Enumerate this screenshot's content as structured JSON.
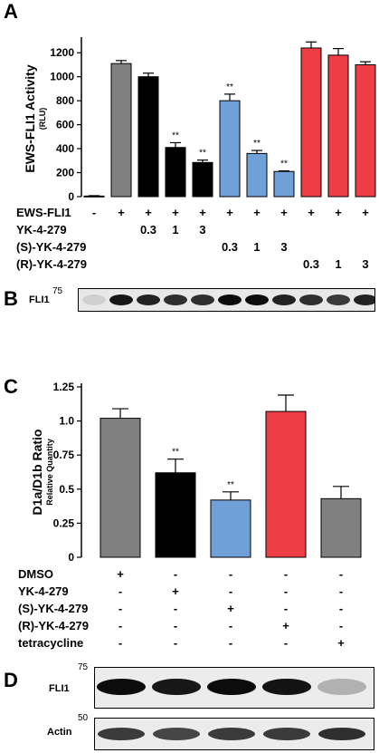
{
  "panels": {
    "a": {
      "letter": "A"
    },
    "b": {
      "letter": "B",
      "label": "FLI1",
      "mw": "75"
    },
    "c": {
      "letter": "C"
    },
    "d": {
      "letter": "D",
      "label_top": "FLI1",
      "mw_top": "75",
      "label_bottom": "Actin",
      "mw_bottom": "50"
    }
  },
  "colors": {
    "grey": "#808080",
    "black": "#000000",
    "blue": "#6fa0d8",
    "red": "#ee3d45"
  },
  "chart_data": [
    {
      "type": "bar",
      "panel": "A",
      "title": "",
      "ylabel": "EWS-FLI1 Activity",
      "ylabel_sub": "(RLU)",
      "ylim": [
        0,
        1300
      ],
      "yticks": [
        0,
        200,
        400,
        600,
        800,
        1000,
        1200
      ],
      "values": [
        5,
        1110,
        1000,
        410,
        285,
        800,
        360,
        210,
        1240,
        1180,
        1100
      ],
      "errors": [
        3,
        25,
        30,
        40,
        20,
        55,
        25,
        5,
        50,
        55,
        25
      ],
      "colors": [
        "#808080",
        "#808080",
        "#000000",
        "#000000",
        "#000000",
        "#6fa0d8",
        "#6fa0d8",
        "#6fa0d8",
        "#ee3d45",
        "#ee3d45",
        "#ee3d45"
      ],
      "significance": [
        "",
        "",
        "",
        "**",
        "**",
        "**",
        "**",
        "**",
        "",
        "",
        ""
      ],
      "condition_rows": [
        {
          "label": "EWS-FLI1",
          "cells": [
            "-",
            "+",
            "+",
            "+",
            "+",
            "+",
            "+",
            "+",
            "+",
            "+",
            "+"
          ]
        },
        {
          "label": "YK-4-279",
          "cells": [
            "",
            "",
            "0.3",
            "1",
            "3",
            "",
            "",
            "",
            "",
            "",
            ""
          ]
        },
        {
          "label": "(S)-YK-4-279",
          "cells": [
            "",
            "",
            "",
            "",
            "",
            "0.3",
            "1",
            "3",
            "",
            "",
            ""
          ]
        },
        {
          "label": "(R)-YK-4-279",
          "cells": [
            "",
            "",
            "",
            "",
            "",
            "",
            "",
            "",
            "0.3",
            "1",
            "3"
          ]
        }
      ]
    },
    {
      "type": "bar",
      "panel": "C",
      "title": "",
      "ylabel": "D1a/D1b Ratio",
      "ylabel_sub": "Relative Quantity",
      "ylim": [
        0,
        1.25
      ],
      "yticks": [
        "0",
        "0.25",
        "0.5",
        "0.75",
        "1.0",
        "1.25"
      ],
      "values": [
        1.02,
        0.62,
        0.42,
        1.07,
        0.43
      ],
      "errors": [
        0.07,
        0.1,
        0.06,
        0.12,
        0.09
      ],
      "colors": [
        "#808080",
        "#000000",
        "#6fa0d8",
        "#ee3d45",
        "#808080"
      ],
      "significance": [
        "",
        "**",
        "**",
        "",
        ""
      ],
      "condition_rows": [
        {
          "label": "DMSO",
          "cells": [
            "+",
            "-",
            "-",
            "-",
            "-"
          ]
        },
        {
          "label": "YK-4-279",
          "cells": [
            "-",
            "+",
            "-",
            "-",
            "-"
          ]
        },
        {
          "label": "(S)-YK-4-279",
          "cells": [
            "-",
            "-",
            "+",
            "-",
            "-"
          ]
        },
        {
          "label": "(R)-YK-4-279",
          "cells": [
            "-",
            "-",
            "-",
            "+",
            "-"
          ]
        },
        {
          "label": "tetracycline",
          "cells": [
            "-",
            "-",
            "-",
            "-",
            "+"
          ]
        }
      ]
    }
  ]
}
